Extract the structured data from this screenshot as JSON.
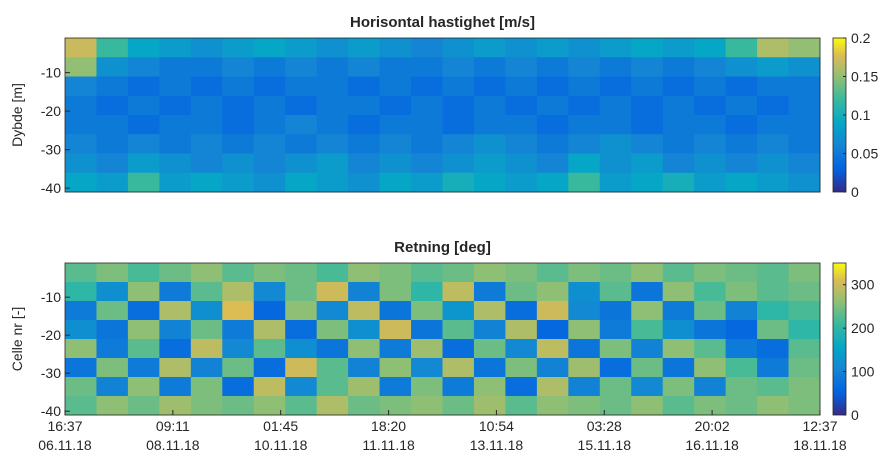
{
  "chart_data": [
    {
      "type": "heatmap",
      "title": "Horisontal hastighet [m/s]",
      "ylabel": "Dybde [m]",
      "xlim": [
        "2018-11-06T16:37",
        "2018-11-18T12:37"
      ],
      "ylim": [
        -41,
        -1
      ],
      "yticks": [
        -40,
        -30,
        -20,
        -10
      ],
      "clim": [
        0,
        0.2
      ],
      "cticks": [
        0,
        0.05,
        0.1,
        0.15,
        0.2
      ],
      "values": [
        [
          0.17,
          0.12,
          0.09,
          0.08,
          0.07,
          0.08,
          0.09,
          0.08,
          0.07,
          0.08,
          0.07,
          0.06,
          0.07,
          0.08,
          0.07,
          0.08,
          0.07,
          0.08,
          0.09,
          0.08,
          0.09,
          0.12,
          0.16,
          0.15
        ],
        [
          0.15,
          0.07,
          0.06,
          0.05,
          0.05,
          0.06,
          0.05,
          0.06,
          0.05,
          0.06,
          0.05,
          0.05,
          0.06,
          0.05,
          0.06,
          0.05,
          0.06,
          0.05,
          0.06,
          0.05,
          0.06,
          0.07,
          0.08,
          0.07
        ],
        [
          0.06,
          0.05,
          0.04,
          0.05,
          0.04,
          0.05,
          0.04,
          0.05,
          0.05,
          0.04,
          0.05,
          0.04,
          0.05,
          0.04,
          0.05,
          0.04,
          0.05,
          0.04,
          0.05,
          0.04,
          0.05,
          0.04,
          0.05,
          0.05
        ],
        [
          0.05,
          0.04,
          0.05,
          0.04,
          0.05,
          0.04,
          0.05,
          0.04,
          0.05,
          0.05,
          0.04,
          0.05,
          0.04,
          0.05,
          0.04,
          0.05,
          0.04,
          0.05,
          0.04,
          0.05,
          0.04,
          0.05,
          0.04,
          0.05
        ],
        [
          0.05,
          0.05,
          0.04,
          0.05,
          0.05,
          0.04,
          0.05,
          0.06,
          0.05,
          0.04,
          0.05,
          0.05,
          0.04,
          0.05,
          0.05,
          0.04,
          0.05,
          0.05,
          0.04,
          0.05,
          0.05,
          0.04,
          0.05,
          0.05
        ],
        [
          0.06,
          0.05,
          0.06,
          0.05,
          0.06,
          0.05,
          0.06,
          0.05,
          0.06,
          0.05,
          0.06,
          0.05,
          0.06,
          0.07,
          0.06,
          0.05,
          0.06,
          0.07,
          0.06,
          0.05,
          0.06,
          0.05,
          0.06,
          0.05
        ],
        [
          0.07,
          0.06,
          0.08,
          0.07,
          0.06,
          0.07,
          0.06,
          0.07,
          0.08,
          0.06,
          0.07,
          0.06,
          0.07,
          0.08,
          0.07,
          0.06,
          0.09,
          0.07,
          0.08,
          0.06,
          0.07,
          0.06,
          0.07,
          0.06
        ],
        [
          0.09,
          0.08,
          0.12,
          0.08,
          0.09,
          0.08,
          0.07,
          0.09,
          0.08,
          0.07,
          0.09,
          0.08,
          0.1,
          0.09,
          0.08,
          0.09,
          0.12,
          0.08,
          0.09,
          0.1,
          0.08,
          0.09,
          0.08,
          0.07
        ]
      ]
    },
    {
      "type": "heatmap",
      "title": "Retning [deg]",
      "ylabel": "Celle nr [-]",
      "xlim": [
        "2018-11-06T16:37",
        "2018-11-18T12:37"
      ],
      "xticks": [
        {
          "value": "2018-11-06T16:37",
          "label": "16:37\n06.11.18"
        },
        {
          "value": "2018-11-08T09:11",
          "label": "09:11\n08.11.18"
        },
        {
          "value": "2018-11-10T01:45",
          "label": "01:45\n10.11.18"
        },
        {
          "value": "2018-11-11T18:20",
          "label": "18:20\n11.11.18"
        },
        {
          "value": "2018-11-13T10:54",
          "label": "10:54\n13.11.18"
        },
        {
          "value": "2018-11-15T03:28",
          "label": "03:28\n15.11.18"
        },
        {
          "value": "2018-11-16T20:02",
          "label": "20:02\n16.11.18"
        },
        {
          "value": "2018-11-18T12:37",
          "label": "12:37\n18.11.18"
        }
      ],
      "ylim": [
        -41,
        -1
      ],
      "yticks": [
        -40,
        -30,
        -20,
        -10
      ],
      "clim": [
        0,
        350
      ],
      "cticks": [
        0,
        100,
        200,
        300
      ],
      "values": [
        [
          230,
          250,
          220,
          240,
          260,
          230,
          250,
          240,
          220,
          260,
          250,
          230,
          240,
          260,
          250,
          230,
          250,
          240,
          260,
          230,
          250,
          240,
          230,
          250
        ],
        [
          200,
          120,
          260,
          90,
          230,
          280,
          110,
          240,
          300,
          100,
          250,
          200,
          290,
          90,
          240,
          260,
          120,
          230,
          80,
          260,
          220,
          250,
          230,
          240
        ],
        [
          90,
          240,
          70,
          280,
          120,
          310,
          60,
          260,
          110,
          290,
          80,
          250,
          130,
          280,
          70,
          300,
          110,
          80,
          260,
          90,
          240,
          100,
          200,
          220
        ],
        [
          120,
          80,
          260,
          100,
          240,
          90,
          280,
          70,
          250,
          120,
          300,
          80,
          230,
          100,
          280,
          60,
          260,
          90,
          220,
          120,
          80,
          60,
          240,
          200
        ],
        [
          260,
          90,
          230,
          70,
          290,
          110,
          230,
          120,
          80,
          260,
          90,
          270,
          70,
          240,
          110,
          290,
          80,
          250,
          100,
          260,
          230,
          90,
          70,
          230
        ],
        [
          80,
          250,
          90,
          280,
          100,
          240,
          70,
          300,
          230,
          100,
          260,
          110,
          280,
          80,
          250,
          100,
          270,
          70,
          240,
          80,
          260,
          220,
          90,
          240
        ],
        [
          240,
          100,
          260,
          90,
          250,
          70,
          290,
          110,
          230,
          270,
          90,
          250,
          90,
          260,
          70,
          280,
          100,
          240,
          110,
          250,
          100,
          240,
          230,
          250
        ],
        [
          230,
          260,
          240,
          270,
          250,
          240,
          260,
          230,
          280,
          240,
          250,
          260,
          240,
          270,
          230,
          260,
          250,
          240,
          260,
          230,
          250,
          240,
          260,
          250
        ]
      ]
    }
  ]
}
